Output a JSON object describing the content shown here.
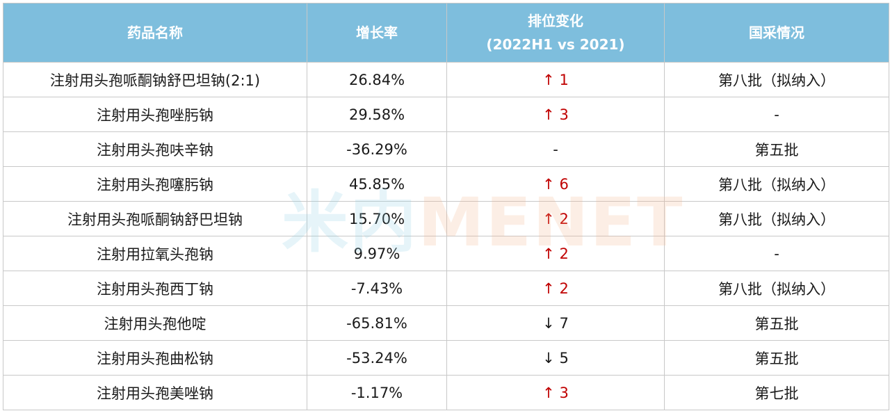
{
  "header": {
    "col_name": "药品名称",
    "col_growth": "增长率",
    "col_rank_line1": "排位变化",
    "col_rank_line2": "(2022H1 vs 2021)",
    "col_procurement": "国采情况"
  },
  "rows": [
    {
      "name": "注射用头孢哌酮钠舒巴坦钠(2:1)",
      "growth": "26.84%",
      "arrow": "↑",
      "rank": "1",
      "dir": "up",
      "procurement": "第八批（拟纳入）"
    },
    {
      "name": "注射用头孢唑肟钠",
      "growth": "29.58%",
      "arrow": "↑",
      "rank": "3",
      "dir": "up",
      "procurement": "-"
    },
    {
      "name": "注射用头孢呋辛钠",
      "growth": "-36.29%",
      "arrow": "",
      "rank": "-",
      "dir": "none",
      "procurement": "第五批"
    },
    {
      "name": "注射用头孢噻肟钠",
      "growth": "45.85%",
      "arrow": "↑",
      "rank": "6",
      "dir": "up",
      "procurement": "第八批（拟纳入）"
    },
    {
      "name": "注射用头孢哌酮钠舒巴坦钠",
      "growth": "15.70%",
      "arrow": "↑",
      "rank": "2",
      "dir": "up",
      "procurement": "第八批（拟纳入）"
    },
    {
      "name": "注射用拉氧头孢钠",
      "growth": "9.97%",
      "arrow": "↑",
      "rank": "2",
      "dir": "up",
      "procurement": "-"
    },
    {
      "name": "注射用头孢西丁钠",
      "growth": "-7.43%",
      "arrow": "↑",
      "rank": "2",
      "dir": "up",
      "procurement": "第八批（拟纳入）"
    },
    {
      "name": "注射用头孢他啶",
      "growth": "-65.81%",
      "arrow": "↓",
      "rank": "7",
      "dir": "down",
      "procurement": "第五批"
    },
    {
      "name": "注射用头孢曲松钠",
      "growth": "-53.24%",
      "arrow": "↓",
      "rank": "5",
      "dir": "down",
      "procurement": "第五批"
    },
    {
      "name": "注射用头孢美唑钠",
      "growth": "-1.17%",
      "arrow": "↑",
      "rank": "3",
      "dir": "up",
      "procurement": "第七批"
    }
  ],
  "watermark": {
    "part_a": "米内",
    "part_b": "MENET"
  },
  "colors": {
    "header_bg": "#7ebedd",
    "up": "#c00000",
    "down": "#1a1a1a"
  }
}
